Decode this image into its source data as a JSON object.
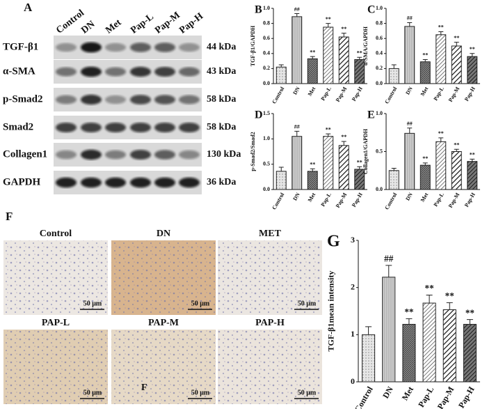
{
  "panel_a": {
    "label": "A",
    "lanes": [
      "Control",
      "DN",
      "Met",
      "Pap-L",
      "Pap-M",
      "Pap-H"
    ],
    "proteins": [
      "TGF-β1",
      "α-SMA",
      "p-Smad2",
      "Smad2",
      "Collagen1",
      "GAPDH"
    ],
    "sizes": [
      "44 kDa",
      "43 kDa",
      "58 kDa",
      "58 kDa",
      "130 kDa",
      "36 kDa"
    ]
  },
  "chart_data": [
    {
      "type": "bar",
      "panel": "B",
      "ylabel": "TGF-β1/GAPDH",
      "categories": [
        "Control",
        "DN",
        "Met",
        "Pap-L",
        "Pap-M",
        "Pap-H"
      ],
      "values": [
        0.22,
        0.89,
        0.33,
        0.75,
        0.62,
        0.32
      ],
      "errors": [
        0.03,
        0.04,
        0.03,
        0.05,
        0.05,
        0.03
      ],
      "annotations": [
        null,
        "##",
        "**",
        "**",
        "**",
        "**"
      ],
      "ylim": [
        0,
        1.0
      ],
      "yticks": [
        {
          "value": 0,
          "label": "0.0"
        },
        {
          "value": 0.2,
          "label": "0.2"
        },
        {
          "value": 0.4,
          "label": "0.4"
        },
        {
          "value": 0.6,
          "label": "0.6"
        },
        {
          "value": 0.8,
          "label": "0.8"
        },
        {
          "value": 1.0,
          "label": "1.0"
        }
      ]
    },
    {
      "type": "bar",
      "panel": "C",
      "ylabel": "α-SMA/GAPDH",
      "categories": [
        "Control",
        "DN",
        "Met",
        "Pap-L",
        "Pap-M",
        "Pap-H"
      ],
      "values": [
        0.2,
        0.76,
        0.29,
        0.65,
        0.5,
        0.36
      ],
      "errors": [
        0.05,
        0.05,
        0.03,
        0.04,
        0.05,
        0.04
      ],
      "annotations": [
        null,
        "##",
        "**",
        "**",
        "**",
        "**"
      ],
      "ylim": [
        0,
        1.0
      ],
      "yticks": [
        {
          "value": 0,
          "label": "0.0"
        },
        {
          "value": 0.2,
          "label": "0.2"
        },
        {
          "value": 0.4,
          "label": "0.4"
        },
        {
          "value": 0.6,
          "label": "0.6"
        },
        {
          "value": 0.8,
          "label": "0.8"
        },
        {
          "value": 1.0,
          "label": "1.0"
        }
      ]
    },
    {
      "type": "bar",
      "panel": "D",
      "ylabel": "p-Smad2/Smad2",
      "categories": [
        "Control",
        "DN",
        "Met",
        "Pap-L",
        "Pap-M",
        "Pap-H"
      ],
      "values": [
        0.36,
        1.05,
        0.36,
        1.05,
        0.87,
        0.4
      ],
      "errors": [
        0.08,
        0.1,
        0.05,
        0.05,
        0.08,
        0.05
      ],
      "annotations": [
        null,
        "##",
        "**",
        "**",
        "**",
        "**"
      ],
      "ylim": [
        0,
        1.5
      ],
      "yticks": [
        {
          "value": 0,
          "label": "0.0"
        },
        {
          "value": 0.5,
          "label": "0.5"
        },
        {
          "value": 1.0,
          "label": "1.0"
        },
        {
          "value": 1.5,
          "label": "1.5"
        }
      ]
    },
    {
      "type": "bar",
      "panel": "E",
      "ylabel": "Collagen1/GAPDH",
      "categories": [
        "Control",
        "DN",
        "Met",
        "Pap-L",
        "Pap-M",
        "Pap-H"
      ],
      "values": [
        0.25,
        0.74,
        0.32,
        0.63,
        0.5,
        0.37
      ],
      "errors": [
        0.03,
        0.07,
        0.03,
        0.05,
        0.03,
        0.03
      ],
      "annotations": [
        null,
        "##",
        "**",
        "**",
        "**",
        "**"
      ],
      "ylim": [
        0,
        1.0
      ],
      "yticks": [
        {
          "value": 0,
          "label": "0.0"
        },
        {
          "value": 0.5,
          "label": "0.5"
        },
        {
          "value": 1.0,
          "label": "1.0"
        }
      ]
    },
    {
      "type": "bar",
      "panel": "G",
      "ylabel": "TGF-β1mean intensity",
      "categories": [
        "Control",
        "DN",
        "Met",
        "Pap-L",
        "Pap-M",
        "Pap-H"
      ],
      "values": [
        1.0,
        2.22,
        1.22,
        1.67,
        1.53,
        1.22
      ],
      "errors": [
        0.17,
        0.25,
        0.12,
        0.17,
        0.15,
        0.1
      ],
      "annotations": [
        null,
        "##",
        "**",
        "**",
        "**",
        "**"
      ],
      "ylim": [
        0,
        3
      ],
      "yticks": [
        0,
        1,
        2,
        3
      ]
    }
  ],
  "panel_f": {
    "label": "F",
    "marker": "F",
    "images": [
      {
        "label": "Control",
        "scale": "50 μm"
      },
      {
        "label": "DN",
        "scale": "50 μm"
      },
      {
        "label": "MET",
        "scale": "50 μm"
      },
      {
        "label": "PAP-L",
        "scale": "50 μm"
      },
      {
        "label": "PAP-M",
        "scale": "50 μm"
      },
      {
        "label": "PAP-H",
        "scale": "50 μm"
      }
    ]
  }
}
